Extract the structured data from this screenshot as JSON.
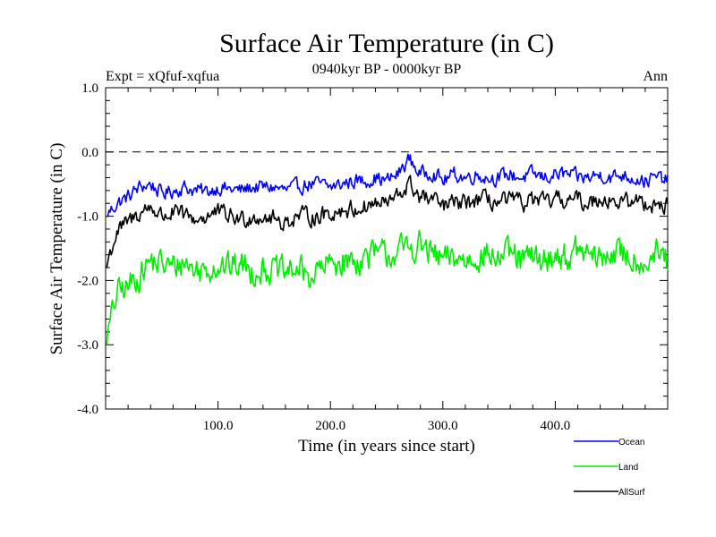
{
  "chart_data": {
    "type": "line",
    "title": "Surface Air Temperature (in C)",
    "subtitle": "0940kyr BP - 0000kyr BP",
    "left_label": "Expt = xQfuf-xqfua",
    "right_label": "Ann",
    "xlabel": "Time (in years since start)",
    "ylabel": "Surface Air Temperature (in C)",
    "xlim": [
      0,
      500
    ],
    "ylim": [
      -4.0,
      1.0
    ],
    "x_ticks": [
      100,
      200,
      300,
      400
    ],
    "x_tick_labels": [
      "100.0",
      "200.0",
      "300.0",
      "400.0"
    ],
    "y_ticks": [
      -4,
      -3,
      -2,
      -1,
      0,
      1
    ],
    "y_tick_labels": [
      "-4.0",
      "-3.0",
      "-2.0",
      "-1.0",
      "0.0",
      "1.0"
    ],
    "reference_line": 0.0,
    "legend_position": "bottom-right",
    "series": [
      {
        "name": "Ocean",
        "color": "#0000ff",
        "x": [
          0,
          10,
          20,
          30,
          40,
          50,
          60,
          70,
          80,
          90,
          100,
          110,
          120,
          130,
          140,
          150,
          160,
          170,
          180,
          190,
          200,
          210,
          220,
          230,
          240,
          250,
          260,
          270,
          280,
          290,
          300,
          310,
          320,
          330,
          340,
          350,
          360,
          370,
          380,
          390,
          400,
          410,
          420,
          430,
          440,
          450,
          460,
          470,
          480,
          490,
          500
        ],
        "values": [
          -1.0,
          -0.8,
          -0.7,
          -0.55,
          -0.5,
          -0.65,
          -0.6,
          -0.55,
          -0.6,
          -0.62,
          -0.55,
          -0.58,
          -0.6,
          -0.55,
          -0.55,
          -0.55,
          -0.6,
          -0.55,
          -0.5,
          -0.5,
          -0.55,
          -0.5,
          -0.45,
          -0.45,
          -0.4,
          -0.45,
          -0.35,
          -0.1,
          -0.35,
          -0.3,
          -0.45,
          -0.35,
          -0.4,
          -0.35,
          -0.4,
          -0.4,
          -0.35,
          -0.4,
          -0.35,
          -0.4,
          -0.35,
          -0.35,
          -0.4,
          -0.4,
          -0.35,
          -0.4,
          -0.35,
          -0.4,
          -0.45,
          -0.4,
          -0.45
        ]
      },
      {
        "name": "Land",
        "color": "#00ee00",
        "x": [
          0,
          10,
          20,
          30,
          40,
          50,
          60,
          70,
          80,
          90,
          100,
          110,
          120,
          130,
          140,
          150,
          160,
          170,
          180,
          190,
          200,
          210,
          220,
          230,
          240,
          250,
          260,
          270,
          280,
          290,
          300,
          310,
          320,
          330,
          340,
          350,
          360,
          370,
          380,
          390,
          400,
          410,
          420,
          430,
          440,
          450,
          460,
          470,
          480,
          490,
          500
        ],
        "values": [
          -3.0,
          -2.2,
          -2.1,
          -1.9,
          -1.7,
          -1.75,
          -1.8,
          -1.7,
          -1.85,
          -1.8,
          -1.75,
          -1.8,
          -1.75,
          -1.85,
          -1.8,
          -1.85,
          -1.9,
          -1.8,
          -1.95,
          -1.85,
          -1.75,
          -1.7,
          -1.7,
          -1.65,
          -1.6,
          -1.6,
          -1.55,
          -1.5,
          -1.45,
          -1.6,
          -1.7,
          -1.65,
          -1.7,
          -1.6,
          -1.6,
          -1.65,
          -1.6,
          -1.7,
          -1.65,
          -1.7,
          -1.6,
          -1.65,
          -1.55,
          -1.6,
          -1.7,
          -1.55,
          -1.6,
          -1.65,
          -1.7,
          -1.6,
          -1.7
        ]
      },
      {
        "name": "AllSurf",
        "color": "#000000",
        "x": [
          0,
          10,
          20,
          30,
          40,
          50,
          60,
          70,
          80,
          90,
          100,
          110,
          120,
          130,
          140,
          150,
          160,
          170,
          180,
          190,
          200,
          210,
          220,
          230,
          240,
          250,
          260,
          270,
          280,
          290,
          300,
          310,
          320,
          330,
          340,
          350,
          360,
          370,
          380,
          390,
          400,
          410,
          420,
          430,
          440,
          450,
          460,
          470,
          480,
          490,
          500
        ],
        "values": [
          -1.8,
          -1.25,
          -1.1,
          -0.95,
          -0.85,
          -1.0,
          -0.95,
          -1.0,
          -1.05,
          -1.0,
          -0.95,
          -1.0,
          -1.05,
          -1.0,
          -1.0,
          -1.05,
          -1.1,
          -1.0,
          -1.0,
          -1.0,
          -0.95,
          -0.9,
          -0.9,
          -0.85,
          -0.8,
          -0.8,
          -0.7,
          -0.5,
          -0.7,
          -0.75,
          -0.85,
          -0.8,
          -0.8,
          -0.75,
          -0.75,
          -0.8,
          -0.75,
          -0.8,
          -0.75,
          -0.8,
          -0.75,
          -0.75,
          -0.75,
          -0.8,
          -0.7,
          -0.75,
          -0.8,
          -0.75,
          -0.8,
          -0.8,
          -0.85
        ]
      }
    ]
  }
}
